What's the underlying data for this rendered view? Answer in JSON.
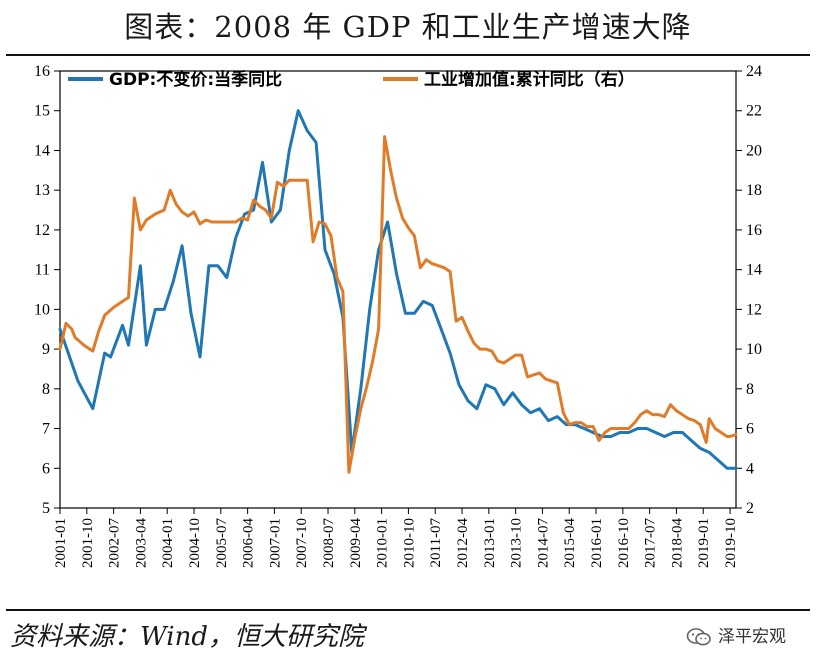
{
  "header": {
    "title": "图表：2008 年 GDP 和工业生产增速大降"
  },
  "footer": {
    "source": "资料来源：Wind，恒大研究院",
    "brand": "泽平宏观"
  },
  "icons": {
    "brand_icon": "wechat-icon"
  },
  "colors": {
    "gdp": "#1F77B4",
    "industry": "#E07B28",
    "axis": "#000000"
  },
  "chart_data": {
    "type": "line",
    "title": "",
    "xlabel": "",
    "ylabel": "",
    "legend_position": "top",
    "grid": false,
    "x_tick_labels": [
      "2001-01",
      "2001-10",
      "2002-07",
      "2003-04",
      "2004-01",
      "2004-10",
      "2005-07",
      "2006-04",
      "2007-01",
      "2007-10",
      "2008-07",
      "2009-04",
      "2010-01",
      "2010-10",
      "2011-07",
      "2012-04",
      "2013-01",
      "2013-10",
      "2014-07",
      "2015-04",
      "2016-01",
      "2016-10",
      "2017-07",
      "2018-04",
      "2019-01",
      "2019-10"
    ],
    "x_range": [
      "2001-01",
      "2019-12"
    ],
    "y_left": {
      "min": 5,
      "max": 16,
      "ticks": [
        5,
        6,
        7,
        8,
        9,
        10,
        11,
        12,
        13,
        14,
        15,
        16
      ]
    },
    "y_right": {
      "min": 2,
      "max": 24,
      "ticks": [
        2,
        4,
        6,
        8,
        10,
        12,
        14,
        16,
        18,
        20,
        22,
        24
      ]
    },
    "series": [
      {
        "name": "GDP:不变价:当季同比",
        "axis": "left",
        "points": [
          [
            "2001-01",
            9.5
          ],
          [
            "2001-07",
            8.2
          ],
          [
            "2001-12",
            7.5
          ],
          [
            "2002-04",
            8.9
          ],
          [
            "2002-06",
            8.8
          ],
          [
            "2002-10",
            9.6
          ],
          [
            "2002-12",
            9.1
          ],
          [
            "2003-04",
            11.1
          ],
          [
            "2003-06",
            9.1
          ],
          [
            "2003-09",
            10.0
          ],
          [
            "2003-12",
            10.0
          ],
          [
            "2004-03",
            10.7
          ],
          [
            "2004-06",
            11.6
          ],
          [
            "2004-09",
            9.9
          ],
          [
            "2004-12",
            8.8
          ],
          [
            "2005-03",
            11.1
          ],
          [
            "2005-06",
            11.1
          ],
          [
            "2005-09",
            10.8
          ],
          [
            "2005-12",
            11.8
          ],
          [
            "2006-03",
            12.4
          ],
          [
            "2006-06",
            12.5
          ],
          [
            "2006-09",
            13.7
          ],
          [
            "2006-12",
            12.2
          ],
          [
            "2007-03",
            12.5
          ],
          [
            "2007-06",
            14.0
          ],
          [
            "2007-09",
            15.0
          ],
          [
            "2007-12",
            14.5
          ],
          [
            "2008-03",
            14.2
          ],
          [
            "2008-06",
            11.5
          ],
          [
            "2008-09",
            10.9
          ],
          [
            "2008-12",
            9.8
          ],
          [
            "2009-03",
            6.4
          ],
          [
            "2009-06",
            8.0
          ],
          [
            "2009-09",
            10.0
          ],
          [
            "2009-12",
            11.5
          ],
          [
            "2010-03",
            12.2
          ],
          [
            "2010-06",
            10.9
          ],
          [
            "2010-09",
            9.9
          ],
          [
            "2010-12",
            9.9
          ],
          [
            "2011-03",
            10.2
          ],
          [
            "2011-06",
            10.1
          ],
          [
            "2011-09",
            9.5
          ],
          [
            "2011-12",
            8.9
          ],
          [
            "2012-03",
            8.1
          ],
          [
            "2012-06",
            7.7
          ],
          [
            "2012-09",
            7.5
          ],
          [
            "2012-12",
            8.1
          ],
          [
            "2013-03",
            8.0
          ],
          [
            "2013-06",
            7.6
          ],
          [
            "2013-09",
            7.9
          ],
          [
            "2013-12",
            7.6
          ],
          [
            "2014-03",
            7.4
          ],
          [
            "2014-06",
            7.5
          ],
          [
            "2014-09",
            7.2
          ],
          [
            "2014-12",
            7.3
          ],
          [
            "2015-03",
            7.1
          ],
          [
            "2015-06",
            7.1
          ],
          [
            "2015-09",
            7.0
          ],
          [
            "2015-12",
            6.9
          ],
          [
            "2016-03",
            6.8
          ],
          [
            "2016-06",
            6.8
          ],
          [
            "2016-09",
            6.9
          ],
          [
            "2016-12",
            6.9
          ],
          [
            "2017-03",
            7.0
          ],
          [
            "2017-06",
            7.0
          ],
          [
            "2017-09",
            6.9
          ],
          [
            "2017-12",
            6.8
          ],
          [
            "2018-03",
            6.9
          ],
          [
            "2018-06",
            6.9
          ],
          [
            "2018-09",
            6.7
          ],
          [
            "2018-12",
            6.5
          ],
          [
            "2019-03",
            6.4
          ],
          [
            "2019-06",
            6.2
          ],
          [
            "2019-09",
            6.0
          ],
          [
            "2019-12",
            6.0
          ]
        ]
      },
      {
        "name": "工业增加值:累计同比（右）",
        "axis": "right",
        "points": [
          [
            "2001-01",
            10.0
          ],
          [
            "2001-03",
            11.3
          ],
          [
            "2001-05",
            11.0
          ],
          [
            "2001-06",
            10.6
          ],
          [
            "2001-09",
            10.2
          ],
          [
            "2001-12",
            9.9
          ],
          [
            "2002-02",
            10.9
          ],
          [
            "2002-04",
            11.7
          ],
          [
            "2002-07",
            12.1
          ],
          [
            "2002-10",
            12.4
          ],
          [
            "2002-12",
            12.6
          ],
          [
            "2003-02",
            17.6
          ],
          [
            "2003-04",
            16.0
          ],
          [
            "2003-06",
            16.5
          ],
          [
            "2003-09",
            16.8
          ],
          [
            "2003-12",
            17.0
          ],
          [
            "2004-02",
            18.0
          ],
          [
            "2004-04",
            17.3
          ],
          [
            "2004-06",
            16.9
          ],
          [
            "2004-08",
            16.7
          ],
          [
            "2004-10",
            16.9
          ],
          [
            "2004-12",
            16.3
          ],
          [
            "2005-02",
            16.5
          ],
          [
            "2005-04",
            16.4
          ],
          [
            "2005-08",
            16.4
          ],
          [
            "2005-12",
            16.4
          ],
          [
            "2006-02",
            16.6
          ],
          [
            "2006-04",
            16.5
          ],
          [
            "2006-06",
            17.5
          ],
          [
            "2006-08",
            17.2
          ],
          [
            "2006-10",
            17.0
          ],
          [
            "2006-12",
            16.6
          ],
          [
            "2007-02",
            18.4
          ],
          [
            "2007-04",
            18.2
          ],
          [
            "2007-06",
            18.5
          ],
          [
            "2007-08",
            18.5
          ],
          [
            "2007-10",
            18.5
          ],
          [
            "2007-12",
            18.5
          ],
          [
            "2008-02",
            15.4
          ],
          [
            "2008-04",
            16.4
          ],
          [
            "2008-06",
            16.3
          ],
          [
            "2008-08",
            15.7
          ],
          [
            "2008-10",
            13.6
          ],
          [
            "2008-12",
            12.9
          ],
          [
            "2009-02",
            3.8
          ],
          [
            "2009-04",
            5.5
          ],
          [
            "2009-06",
            7.0
          ],
          [
            "2009-08",
            8.1
          ],
          [
            "2009-10",
            9.4
          ],
          [
            "2009-12",
            11.0
          ],
          [
            "2010-02",
            20.7
          ],
          [
            "2010-04",
            19.0
          ],
          [
            "2010-06",
            17.6
          ],
          [
            "2010-08",
            16.6
          ],
          [
            "2010-10",
            16.1
          ],
          [
            "2010-12",
            15.7
          ],
          [
            "2011-02",
            14.1
          ],
          [
            "2011-04",
            14.5
          ],
          [
            "2011-06",
            14.3
          ],
          [
            "2011-08",
            14.2
          ],
          [
            "2011-10",
            14.1
          ],
          [
            "2011-12",
            13.9
          ],
          [
            "2012-02",
            11.4
          ],
          [
            "2012-04",
            11.6
          ],
          [
            "2012-06",
            10.9
          ],
          [
            "2012-08",
            10.3
          ],
          [
            "2012-10",
            10.0
          ],
          [
            "2012-12",
            10.0
          ],
          [
            "2013-02",
            9.9
          ],
          [
            "2013-04",
            9.4
          ],
          [
            "2013-06",
            9.3
          ],
          [
            "2013-08",
            9.5
          ],
          [
            "2013-10",
            9.7
          ],
          [
            "2013-12",
            9.7
          ],
          [
            "2014-02",
            8.6
          ],
          [
            "2014-04",
            8.7
          ],
          [
            "2014-06",
            8.8
          ],
          [
            "2014-08",
            8.5
          ],
          [
            "2014-10",
            8.4
          ],
          [
            "2014-12",
            8.3
          ],
          [
            "2015-02",
            6.8
          ],
          [
            "2015-04",
            6.2
          ],
          [
            "2015-06",
            6.3
          ],
          [
            "2015-08",
            6.3
          ],
          [
            "2015-10",
            6.1
          ],
          [
            "2015-12",
            6.1
          ],
          [
            "2016-02",
            5.4
          ],
          [
            "2016-04",
            5.8
          ],
          [
            "2016-06",
            6.0
          ],
          [
            "2016-08",
            6.0
          ],
          [
            "2016-10",
            6.0
          ],
          [
            "2016-12",
            6.0
          ],
          [
            "2017-02",
            6.3
          ],
          [
            "2017-04",
            6.7
          ],
          [
            "2017-06",
            6.9
          ],
          [
            "2017-08",
            6.7
          ],
          [
            "2017-10",
            6.7
          ],
          [
            "2017-12",
            6.6
          ],
          [
            "2018-02",
            7.2
          ],
          [
            "2018-04",
            6.9
          ],
          [
            "2018-06",
            6.7
          ],
          [
            "2018-08",
            6.5
          ],
          [
            "2018-10",
            6.4
          ],
          [
            "2018-12",
            6.2
          ],
          [
            "2019-02",
            5.3
          ],
          [
            "2019-03",
            6.5
          ],
          [
            "2019-05",
            6.0
          ],
          [
            "2019-07",
            5.8
          ],
          [
            "2019-09",
            5.6
          ],
          [
            "2019-10",
            5.6
          ],
          [
            "2019-12",
            5.7
          ]
        ]
      }
    ]
  }
}
